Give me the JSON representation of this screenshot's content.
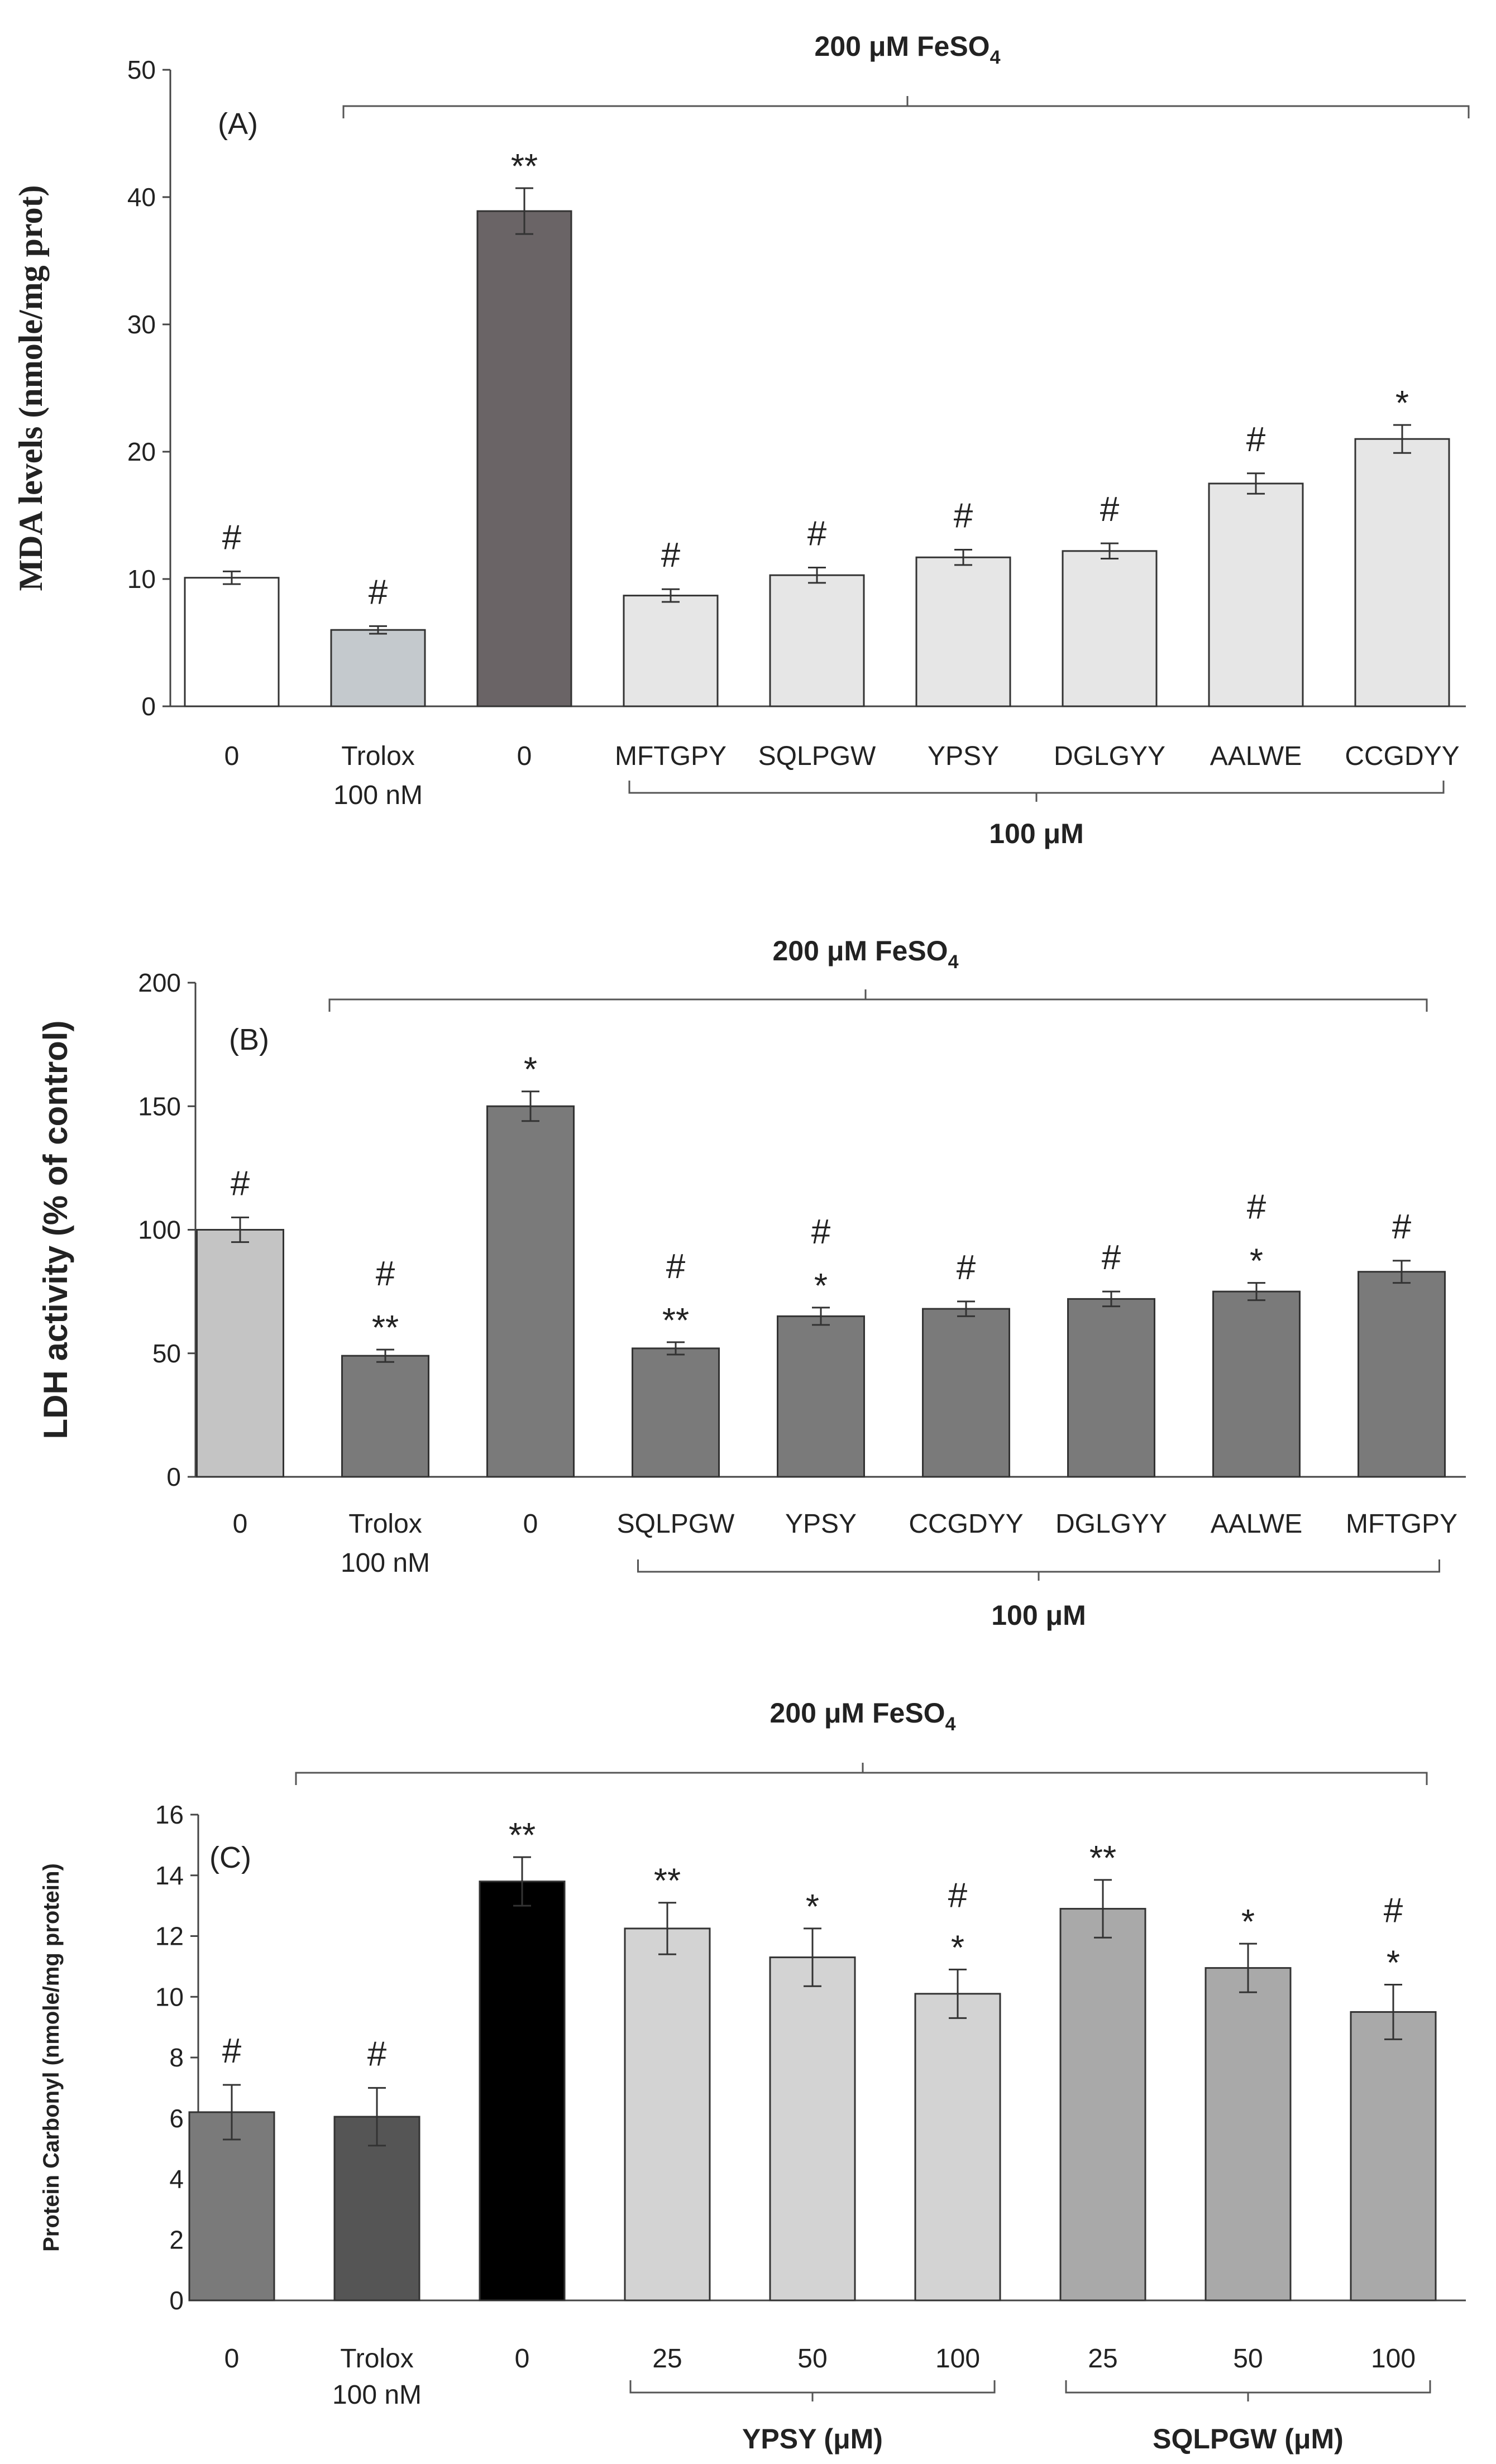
{
  "chart_data": [
    {
      "type": "bar",
      "panel_label": "(A)",
      "treatment_label": "200 μM FeSO",
      "treatment_sub": "4",
      "ylabel": "MDA levels (nmole/mg prot)",
      "ylim": [
        0,
        50
      ],
      "yticks": [
        "0",
        "10",
        "20",
        "30",
        "40",
        "50"
      ],
      "categories": [
        [
          "0"
        ],
        [
          "Trolox",
          "100 nM"
        ],
        [
          "0"
        ],
        [
          "MFTGPY"
        ],
        [
          "SQLPGW"
        ],
        [
          "YPSY"
        ],
        [
          "DGLGYY"
        ],
        [
          "AALWE"
        ],
        [
          "CCGDYY"
        ]
      ],
      "values": [
        10.1,
        6.0,
        38.9,
        8.7,
        10.3,
        11.7,
        12.2,
        17.5,
        21.0
      ],
      "errors": [
        0.5,
        0.3,
        1.8,
        0.5,
        0.6,
        0.6,
        0.6,
        0.8,
        1.1
      ],
      "colors": [
        "#ffffff",
        "#c4c9cd",
        "#6a6466",
        "#e6e6e6",
        "#e6e6e6",
        "#e6e6e6",
        "#e6e6e6",
        "#e6e6e6",
        "#e6e6e6"
      ],
      "annotations": [
        [
          "#"
        ],
        [
          "#"
        ],
        [
          "**"
        ],
        [
          "#"
        ],
        [
          "#"
        ],
        [
          "#"
        ],
        [
          "#"
        ],
        [
          "#"
        ],
        [
          "*"
        ]
      ],
      "groups": [
        {
          "label": "100 μM",
          "from": 3,
          "to": 8
        }
      ]
    },
    {
      "type": "bar",
      "panel_label": "(B)",
      "treatment_label": "200 μM FeSO",
      "treatment_sub": "4",
      "ylabel": "LDH activity (% of control)",
      "ylim": [
        0,
        200
      ],
      "yticks": [
        "0",
        "50",
        "100",
        "150",
        "200"
      ],
      "categories": [
        [
          "0"
        ],
        [
          "Trolox",
          "100 nM"
        ],
        [
          "0"
        ],
        [
          "SQLPGW"
        ],
        [
          "YPSY"
        ],
        [
          "CCGDYY"
        ],
        [
          "DGLGYY"
        ],
        [
          "AALWE"
        ],
        [
          "MFTGPY"
        ]
      ],
      "values": [
        100,
        49,
        150,
        52,
        65,
        68,
        72,
        75,
        83
      ],
      "errors": [
        5,
        2.5,
        6,
        2.5,
        3.5,
        3,
        3,
        3.5,
        4.5
      ],
      "colors": [
        "#c4c4c4",
        "#7a7a7a",
        "#7a7a7a",
        "#7a7a7a",
        "#7a7a7a",
        "#7a7a7a",
        "#7a7a7a",
        "#7a7a7a",
        "#7a7a7a"
      ],
      "annotations": [
        [
          "#"
        ],
        [
          "#",
          "**"
        ],
        [
          "*"
        ],
        [
          "#",
          "**"
        ],
        [
          "#",
          "*"
        ],
        [
          "#"
        ],
        [
          "#"
        ],
        [
          "#",
          "*"
        ],
        [
          "#"
        ]
      ],
      "groups": [
        {
          "label": "100 μM",
          "from": 3,
          "to": 8
        }
      ]
    },
    {
      "type": "bar",
      "panel_label": "(C)",
      "treatment_label": "200 μM FeSO",
      "treatment_sub": "4",
      "ylabel": "Protein Carbonyl (nmole/mg protein)",
      "ylim": [
        0,
        16
      ],
      "yticks": [
        "0",
        "2",
        "4",
        "6",
        "8",
        "10",
        "12",
        "14",
        "16"
      ],
      "categories": [
        [
          "0"
        ],
        [
          "Trolox",
          "100 nM"
        ],
        [
          "0"
        ],
        [
          "25"
        ],
        [
          "50"
        ],
        [
          "100"
        ],
        [
          "25"
        ],
        [
          "50"
        ],
        [
          "100"
        ]
      ],
      "values": [
        6.2,
        6.05,
        13.8,
        12.25,
        11.3,
        10.1,
        12.9,
        10.95,
        9.5
      ],
      "errors": [
        0.9,
        0.95,
        0.8,
        0.85,
        0.95,
        0.8,
        0.95,
        0.8,
        0.9
      ],
      "colors": [
        "#7a7a7a",
        "#555555",
        "#000000",
        "#d3d3d3",
        "#d3d3d3",
        "#d3d3d3",
        "#a9a9a9",
        "#a9a9a9",
        "#a9a9a9"
      ],
      "annotations": [
        [
          "#"
        ],
        [
          "#"
        ],
        [
          "**"
        ],
        [
          "**"
        ],
        [
          "*"
        ],
        [
          "#",
          "*"
        ],
        [
          "**"
        ],
        [
          "*"
        ],
        [
          "#",
          "*"
        ]
      ],
      "groups": [
        {
          "label": "YPSY (μM)",
          "from": 3,
          "to": 5
        },
        {
          "label": "SQLPGW (μM)",
          "from": 6,
          "to": 8
        }
      ]
    }
  ]
}
